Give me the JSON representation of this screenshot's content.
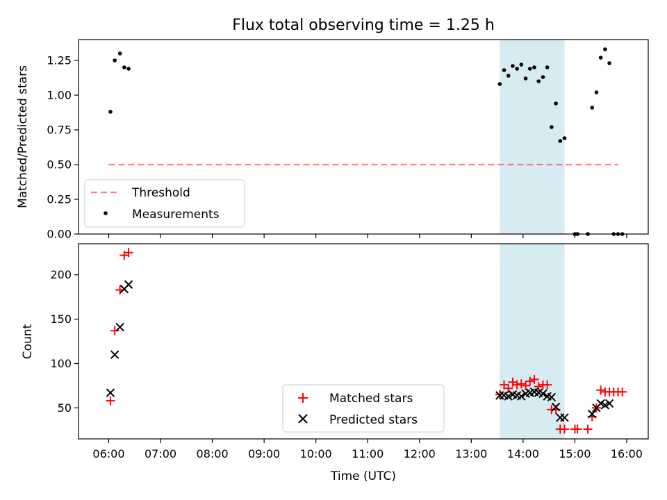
{
  "chart_data": [
    {
      "type": "scatter",
      "title": "Flux total observing time = 1.25 h",
      "xlabel": "",
      "ylabel": "Matched/Predicted stars",
      "ylim": [
        0,
        1.4
      ],
      "xlim": [
        "05:25",
        "16:25"
      ],
      "yticks": [
        "0.00",
        "0.25",
        "0.50",
        "0.75",
        "1.00",
        "1.25"
      ],
      "highlight_span": {
        "start": "13:33",
        "end": "14:48",
        "color": "#add8e6"
      },
      "threshold": {
        "name": "Threshold",
        "value": 0.5,
        "x_start": "06:00",
        "x_end": "15:50",
        "color": "#ff6666"
      },
      "series": [
        {
          "name": "Measurements",
          "color": "#000000",
          "points": [
            [
              "06:02",
              0.88
            ],
            [
              "06:07",
              1.25
            ],
            [
              "06:13",
              1.3
            ],
            [
              "06:18",
              1.2
            ],
            [
              "06:23",
              1.19
            ],
            [
              "13:33",
              1.08
            ],
            [
              "13:38",
              1.18
            ],
            [
              "13:43",
              1.14
            ],
            [
              "13:48",
              1.21
            ],
            [
              "13:53",
              1.19
            ],
            [
              "13:58",
              1.22
            ],
            [
              "14:03",
              1.12
            ],
            [
              "14:08",
              1.19
            ],
            [
              "14:13",
              1.2
            ],
            [
              "14:18",
              1.1
            ],
            [
              "14:23",
              1.13
            ],
            [
              "14:28",
              1.2
            ],
            [
              "14:33",
              0.77
            ],
            [
              "14:38",
              0.94
            ],
            [
              "14:43",
              0.67
            ],
            [
              "14:48",
              0.69
            ],
            [
              "15:00",
              0.0
            ],
            [
              "15:03",
              0.0
            ],
            [
              "15:15",
              0.0
            ],
            [
              "15:20",
              0.91
            ],
            [
              "15:25",
              1.02
            ],
            [
              "15:30",
              1.27
            ],
            [
              "15:35",
              1.33
            ],
            [
              "15:40",
              1.23
            ],
            [
              "15:45",
              0.0
            ],
            [
              "15:50",
              0.0
            ],
            [
              "15:55",
              0.0
            ]
          ]
        }
      ],
      "legend": {
        "position": "lower-left",
        "entries": [
          "Threshold",
          "Measurements"
        ]
      }
    },
    {
      "type": "scatter",
      "title": "",
      "xlabel": "Time (UTC)",
      "ylabel": "Count",
      "ylim": [
        15,
        235
      ],
      "xlim": [
        "05:25",
        "16:25"
      ],
      "yticks": [
        "50",
        "100",
        "150",
        "200"
      ],
      "xticks": [
        "06:00",
        "07:00",
        "08:00",
        "09:00",
        "10:00",
        "11:00",
        "12:00",
        "13:00",
        "14:00",
        "15:00",
        "16:00"
      ],
      "highlight_span": {
        "start": "13:33",
        "end": "14:48",
        "color": "#add8e6"
      },
      "series": [
        {
          "name": "Matched stars",
          "color": "#ff0000",
          "marker": "+",
          "points": [
            [
              "06:02",
              58
            ],
            [
              "06:07",
              137
            ],
            [
              "06:13",
              183
            ],
            [
              "06:18",
              222
            ],
            [
              "06:23",
              225
            ],
            [
              "13:33",
              65
            ],
            [
              "13:38",
              76
            ],
            [
              "13:43",
              72
            ],
            [
              "13:48",
              79
            ],
            [
              "13:53",
              76
            ],
            [
              "13:58",
              77
            ],
            [
              "14:03",
              75
            ],
            [
              "14:08",
              80
            ],
            [
              "14:13",
              82
            ],
            [
              "14:18",
              74
            ],
            [
              "14:23",
              76
            ],
            [
              "14:28",
              76
            ],
            [
              "14:33",
              48
            ],
            [
              "14:38",
              48
            ],
            [
              "14:43",
              26
            ],
            [
              "14:48",
              26
            ],
            [
              "15:00",
              26
            ],
            [
              "15:03",
              26
            ],
            [
              "15:15",
              26
            ],
            [
              "15:20",
              40
            ],
            [
              "15:25",
              50
            ],
            [
              "15:30",
              70
            ],
            [
              "15:35",
              68
            ],
            [
              "15:40",
              68
            ],
            [
              "15:45",
              68
            ],
            [
              "15:50",
              68
            ],
            [
              "15:55",
              68
            ]
          ]
        },
        {
          "name": "Predicted stars",
          "color": "#000000",
          "marker": "x",
          "points": [
            [
              "06:02",
              67
            ],
            [
              "06:07",
              110
            ],
            [
              "06:13",
              141
            ],
            [
              "06:18",
              184
            ],
            [
              "06:23",
              189
            ],
            [
              "13:33",
              64
            ],
            [
              "13:38",
              64
            ],
            [
              "13:43",
              63
            ],
            [
              "13:48",
              65
            ],
            [
              "13:53",
              64
            ],
            [
              "13:58",
              63
            ],
            [
              "14:03",
              66
            ],
            [
              "14:08",
              67
            ],
            [
              "14:13",
              68
            ],
            [
              "14:18",
              67
            ],
            [
              "14:23",
              66
            ],
            [
              "14:28",
              63
            ],
            [
              "14:33",
              62
            ],
            [
              "14:38",
              51
            ],
            [
              "14:43",
              39
            ],
            [
              "14:48",
              39
            ],
            [
              "15:20",
              43
            ],
            [
              "15:25",
              50
            ],
            [
              "15:30",
              55
            ],
            [
              "15:35",
              53
            ],
            [
              "15:40",
              55
            ]
          ]
        }
      ],
      "legend": {
        "position": "lower-center",
        "entries": [
          "Matched stars",
          "Predicted stars"
        ]
      }
    }
  ]
}
